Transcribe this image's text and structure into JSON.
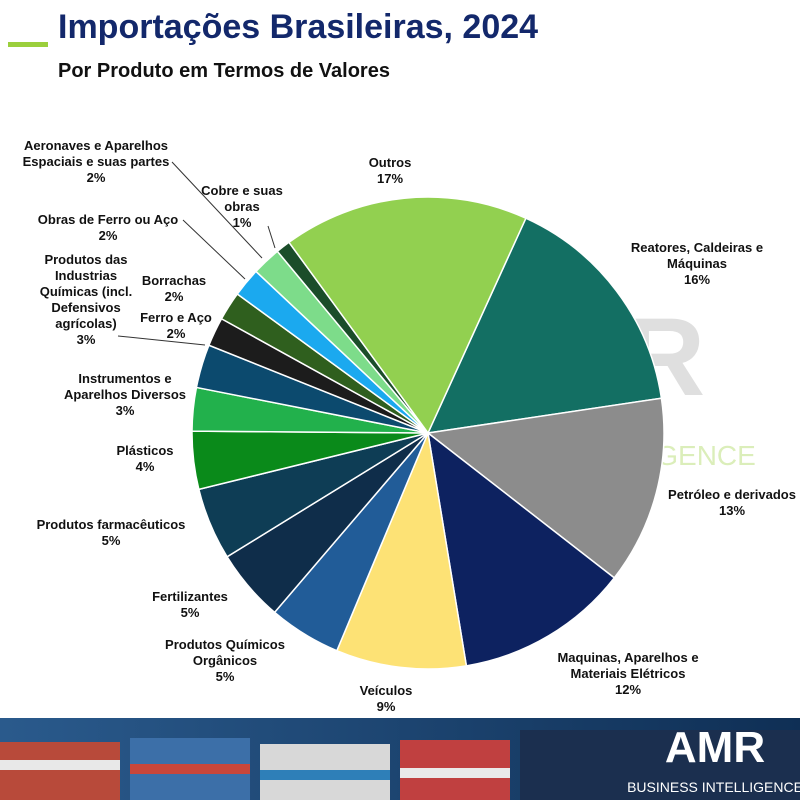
{
  "chart_data": {
    "type": "pie",
    "title": "Importações Brasileiras, 2024",
    "subtitle": "Por Produto em Termos de Valores",
    "categories": [
      "Reatores, Caldeiras e\nMáquinas",
      "Petróleo e derivados",
      "Maquinas, Aparelhos e\nMateriais Elétricos",
      "Veículos",
      "Produtos Químicos\nOrgânicos",
      "Fertilizantes",
      "Produtos farmacêuticos",
      "Plásticos",
      "Instrumentos e\nAparelhos Diversos",
      "Produtos das\nIndustrias\nQuímicas (incl.\nDefensivos\nagrícolas)",
      "Ferro e Aço",
      "Borrachas",
      "Obras de Ferro ou Aço",
      "Aeronaves e Aparelhos\nEspaciais e suas partes",
      "Cobre e suas\nobras",
      "Outros"
    ],
    "values": [
      16,
      13,
      12,
      9,
      5,
      5,
      5,
      4,
      3,
      3,
      2,
      2,
      2,
      2,
      1,
      17
    ],
    "value_labels": [
      "16%",
      "13%",
      "12%",
      "9%",
      "5%",
      "5%",
      "5%",
      "4%",
      "3%",
      "3%",
      "2%",
      "2%",
      "2%",
      "2%",
      "1%",
      "17%"
    ],
    "colors": [
      "#136f63",
      "#8c8c8c",
      "#0d2260",
      "#fde275",
      "#215c98",
      "#0f2d4a",
      "#0e3d55",
      "#0a8a1a",
      "#22b14c",
      "#0c4a6e",
      "#1c1c1c",
      "#2f5f1e",
      "#1ba9ef",
      "#7ddc8a",
      "#1b4d2a",
      "#92d050"
    ]
  },
  "brand": {
    "name": "AMR",
    "tagline": "BUSINESS INTELLIGENCE"
  }
}
